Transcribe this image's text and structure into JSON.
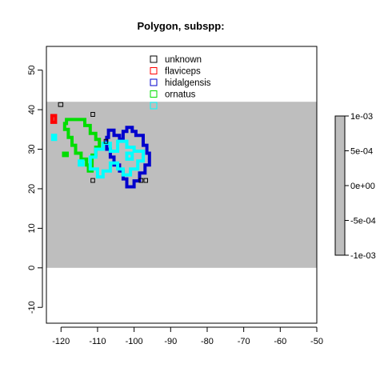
{
  "chart_data": {
    "type": "area",
    "title": "Polygon, subspp:",
    "xlim": [
      -124,
      -50
    ],
    "ylim": [
      -14,
      56
    ],
    "xticks": [
      "-120",
      "-110",
      "-100",
      "-90",
      "-80",
      "-70",
      "-60",
      "-50"
    ],
    "yticks": [
      "-10",
      "0",
      "10",
      "20",
      "30",
      "40",
      "50"
    ],
    "raster_extent": {
      "x": [
        -124,
        -50
      ],
      "y": [
        0,
        42
      ]
    },
    "raster_color": "#bebebe",
    "colorbar": {
      "range": [
        -0.001,
        0.001
      ],
      "ticks": [
        "1e-03",
        "5e-04",
        "0e+00",
        "-5e-04",
        "-1e-03"
      ]
    },
    "legend": {
      "position": "top-center",
      "entries": [
        {
          "label": "unknown",
          "color": "#000000"
        },
        {
          "label": "flaviceps",
          "color": "#ff0000"
        },
        {
          "label": "hidalgensis",
          "color": "#0000cd"
        },
        {
          "label": "ornatus",
          "color": "#00dd00"
        },
        {
          "label": "",
          "color": "#00ffff"
        }
      ]
    },
    "series": [
      {
        "name": "hidalgensis",
        "color": "#0000cd",
        "polygons": [
          [
            [
              -107,
              34.8
            ],
            [
              -105.5,
              34.8
            ],
            [
              -105.5,
              33.5
            ],
            [
              -104,
              33.5
            ],
            [
              -104,
              32.5
            ],
            [
              -103,
              32.5
            ],
            [
              -103,
              34.5
            ],
            [
              -102,
              34.5
            ],
            [
              -102,
              35.5
            ],
            [
              -100.5,
              35.5
            ],
            [
              -100.5,
              34.5
            ],
            [
              -99.5,
              34.5
            ],
            [
              -99.5,
              33.5
            ],
            [
              -97.5,
              33.5
            ],
            [
              -97.5,
              31
            ],
            [
              -96.5,
              31
            ],
            [
              -96.5,
              29
            ],
            [
              -95.8,
              29
            ],
            [
              -95.8,
              26
            ],
            [
              -97,
              26
            ],
            [
              -97,
              24
            ],
            [
              -98.5,
              24
            ],
            [
              -98.5,
              22
            ],
            [
              -100,
              22
            ],
            [
              -100,
              20.5
            ],
            [
              -102,
              20.5
            ],
            [
              -102,
              22.5
            ],
            [
              -103,
              22.5
            ],
            [
              -103,
              24.5
            ],
            [
              -104,
              24.5
            ],
            [
              -104,
              26
            ],
            [
              -105.5,
              26
            ],
            [
              -105.5,
              28
            ],
            [
              -106.5,
              28
            ],
            [
              -106.5,
              30
            ],
            [
              -107.5,
              30
            ],
            [
              -107.5,
              33
            ],
            [
              -107,
              33
            ],
            [
              -107,
              34.8
            ]
          ]
        ]
      },
      {
        "name": "ornatus",
        "color": "#00dd00",
        "polygons": [
          [
            [
              -118.5,
              37.5
            ],
            [
              -113.5,
              37.5
            ],
            [
              -113.5,
              36
            ],
            [
              -112,
              36
            ],
            [
              -112,
              34
            ],
            [
              -110.5,
              34
            ],
            [
              -110.5,
              32.5
            ],
            [
              -109.5,
              32.5
            ],
            [
              -109.5,
              30.5
            ],
            [
              -110.5,
              30.5
            ],
            [
              -110.5,
              28.5
            ],
            [
              -111.5,
              28.5
            ],
            [
              -111.5,
              26
            ],
            [
              -112.5,
              26
            ],
            [
              -112.5,
              24.5
            ],
            [
              -111.5,
              24.5
            ],
            [
              -111.5,
              26
            ],
            [
              -113,
              26
            ],
            [
              -113,
              27.5
            ],
            [
              -114.5,
              27.5
            ],
            [
              -114.5,
              29
            ],
            [
              -116,
              29
            ],
            [
              -116,
              31
            ],
            [
              -117,
              31
            ],
            [
              -117,
              33
            ],
            [
              -118,
              33
            ],
            [
              -118,
              35
            ],
            [
              -119,
              35
            ],
            [
              -119,
              36.5
            ],
            [
              -118.5,
              36.5
            ],
            [
              -118.5,
              37.5
            ]
          ],
          [
            [
              -119.3,
              29
            ],
            [
              -118.3,
              29
            ],
            [
              -118.3,
              28.4
            ],
            [
              -119.3,
              28.4
            ],
            [
              -119.3,
              29
            ]
          ]
        ]
      },
      {
        "name": "",
        "color": "#00ffff",
        "polygons": [
          [
            [
              -112,
              25
            ],
            [
              -112,
              28
            ],
            [
              -110.5,
              28
            ],
            [
              -110.5,
              30
            ],
            [
              -108.5,
              30
            ],
            [
              -108.5,
              31.5
            ],
            [
              -106.5,
              31.5
            ],
            [
              -106.5,
              29.5
            ],
            [
              -104.5,
              29.5
            ],
            [
              -104.5,
              32
            ],
            [
              -102,
              32
            ],
            [
              -102,
              30.5
            ],
            [
              -100,
              30.5
            ],
            [
              -100,
              29.5
            ],
            [
              -97.5,
              29.5
            ],
            [
              -97.5,
              27
            ],
            [
              -99,
              27
            ],
            [
              -99,
              25
            ],
            [
              -101,
              25
            ],
            [
              -101,
              23.5
            ],
            [
              -103,
              23.5
            ],
            [
              -103,
              25
            ],
            [
              -104.5,
              25
            ],
            [
              -104.5,
              26.5
            ],
            [
              -106.5,
              26.5
            ],
            [
              -106.5,
              24.5
            ],
            [
              -108.5,
              24.5
            ],
            [
              -108.5,
              23
            ],
            [
              -110,
              23
            ],
            [
              -110,
              25
            ],
            [
              -112,
              25
            ]
          ],
          [
            [
              -102,
              29
            ],
            [
              -100.5,
              29
            ],
            [
              -100.5,
              27.5
            ],
            [
              -102,
              27.5
            ],
            [
              -102,
              29
            ]
          ],
          [
            [
              -115,
              27
            ],
            [
              -114,
              27
            ],
            [
              -114,
              26
            ],
            [
              -115,
              26
            ],
            [
              -115,
              27
            ]
          ],
          [
            [
              -122.3,
              33.5
            ],
            [
              -121.5,
              33.5
            ],
            [
              -121.5,
              32.5
            ],
            [
              -122.3,
              32.5
            ],
            [
              -122.3,
              33.5
            ]
          ]
        ]
      },
      {
        "name": "flaviceps",
        "color": "#ff0000",
        "polygons": [
          [
            [
              -122.5,
              38.5
            ],
            [
              -121.5,
              38.5
            ],
            [
              -121.5,
              36.8
            ],
            [
              -122.5,
              36.8
            ],
            [
              -122.5,
              38.5
            ]
          ]
        ]
      },
      {
        "name": "unknown",
        "color": "#000000",
        "polygons": [
          [
            [
              -120.7,
              41.8
            ],
            [
              -119.5,
              41.8
            ],
            [
              -119.5,
              40.8
            ],
            [
              -120.7,
              40.8
            ],
            [
              -120.7,
              41.8
            ]
          ],
          [
            [
              -111.8,
              39.3
            ],
            [
              -110.8,
              39.3
            ],
            [
              -110.8,
              38.3
            ],
            [
              -111.8,
              38.3
            ],
            [
              -111.8,
              39.3
            ]
          ],
          [
            [
              -108.2,
              32.5
            ],
            [
              -107.2,
              32.5
            ],
            [
              -107.2,
              31.5
            ],
            [
              -108.2,
              31.5
            ],
            [
              -108.2,
              32.5
            ]
          ],
          [
            [
              -111.8,
              22.6
            ],
            [
              -110.8,
              22.6
            ],
            [
              -110.8,
              21.6
            ],
            [
              -111.8,
              21.6
            ],
            [
              -111.8,
              22.6
            ]
          ],
          [
            [
              -97.3,
              22.6
            ],
            [
              -96.3,
              22.6
            ],
            [
              -96.3,
              21.6
            ],
            [
              -97.3,
              21.6
            ],
            [
              -97.3,
              22.6
            ]
          ],
          [
            [
              -98.6,
              22.6
            ],
            [
              -97.6,
              22.6
            ],
            [
              -97.6,
              21.6
            ],
            [
              -98.6,
              21.6
            ],
            [
              -98.6,
              22.6
            ]
          ]
        ]
      }
    ]
  }
}
